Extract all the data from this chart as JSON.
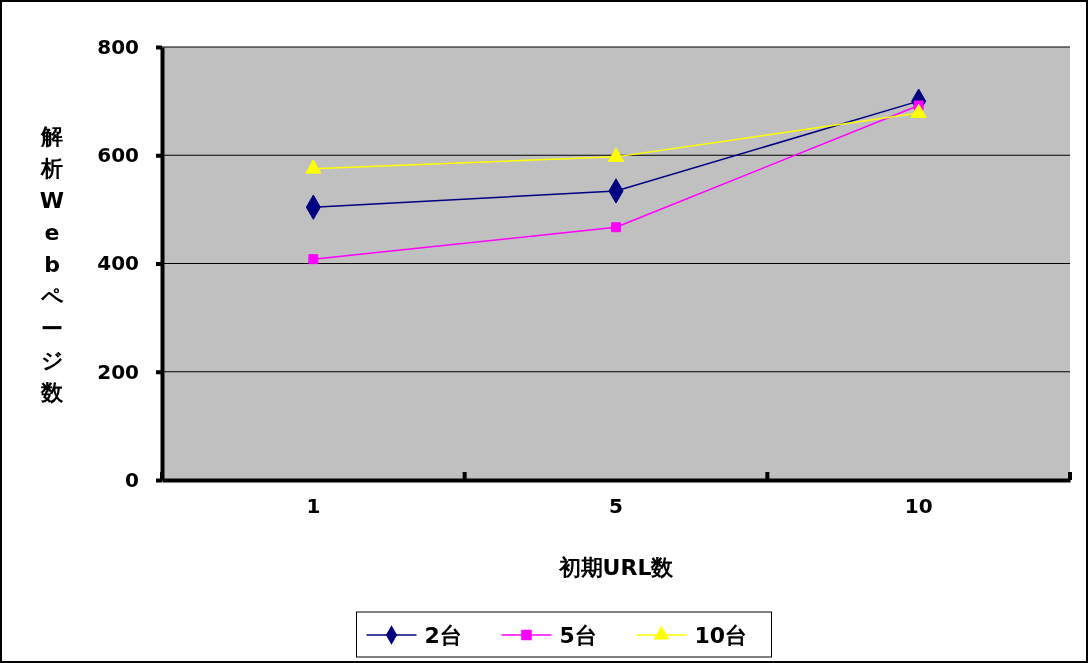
{
  "chart_data": {
    "type": "line",
    "xlabel": "初期URL数",
    "ylabel": "解析Webページ数",
    "categories": [
      "1",
      "5",
      "10"
    ],
    "series": [
      {
        "name": "2台",
        "color": "#000080",
        "marker": "diamond",
        "values": [
          504,
          534,
          700
        ]
      },
      {
        "name": "5台",
        "color": "#ff00ff",
        "marker": "square",
        "values": [
          408,
          467,
          692
        ]
      },
      {
        "name": "10台",
        "color": "#ffff00",
        "marker": "triangle",
        "values": [
          575,
          597,
          678
        ]
      }
    ],
    "ylim": [
      0,
      800
    ],
    "yticks": [
      0,
      200,
      400,
      600,
      800
    ],
    "grid": "y",
    "legend": "bottom"
  }
}
